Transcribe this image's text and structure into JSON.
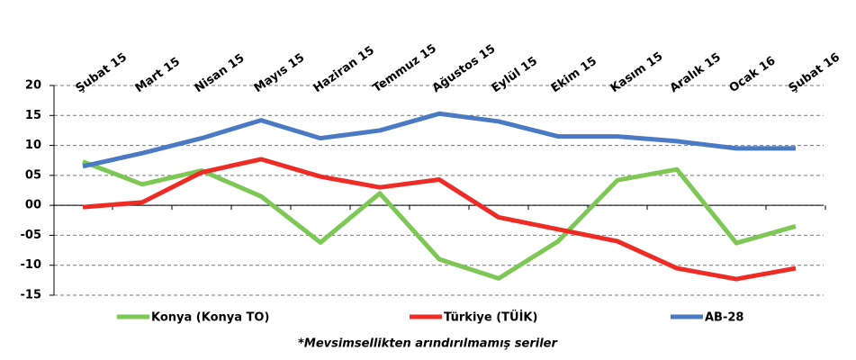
{
  "chart_data": {
    "type": "line",
    "categories": [
      "Şubat 15",
      "Mart 15",
      "Nisan 15",
      "Mayıs 15",
      "Haziran 15",
      "Temmuz 15",
      "Ağustos 15",
      "Eylül 15",
      "Ekim 15",
      "Kasım 15",
      "Aralık 15",
      "Ocak 16",
      "Şubat 16"
    ],
    "series": [
      {
        "name": "Konya (Konya TO)",
        "color": "#7dc855",
        "values": [
          7.3,
          3.5,
          5.8,
          1.5,
          -6.2,
          2.0,
          -9.0,
          -12.2,
          -6.0,
          4.2,
          6.0,
          -6.3,
          -3.5
        ]
      },
      {
        "name": "Türkiye (TÜİK)",
        "color": "#ee2b24",
        "values": [
          -0.3,
          0.5,
          5.5,
          7.7,
          4.8,
          3.0,
          4.3,
          -2.0,
          -4.0,
          -6.0,
          -10.5,
          -12.3,
          -10.5
        ]
      },
      {
        "name": "AB-28",
        "color": "#4a7ac4",
        "values": [
          6.5,
          8.7,
          11.2,
          14.2,
          11.2,
          12.5,
          15.3,
          14.0,
          11.5,
          11.5,
          10.7,
          9.5,
          9.5
        ]
      }
    ],
    "ylim": [
      -15,
      20
    ],
    "yticks": [
      20,
      15,
      10,
      {
        "value": 5,
        "label": "05"
      },
      {
        "value": 0,
        "label": "00"
      },
      {
        "value": -5,
        "label": "-05"
      },
      -10,
      -15
    ],
    "grid": true,
    "legend": "bottom",
    "annotations": [
      "*Mevsimsellikten arındırılmamış seriler"
    ]
  }
}
